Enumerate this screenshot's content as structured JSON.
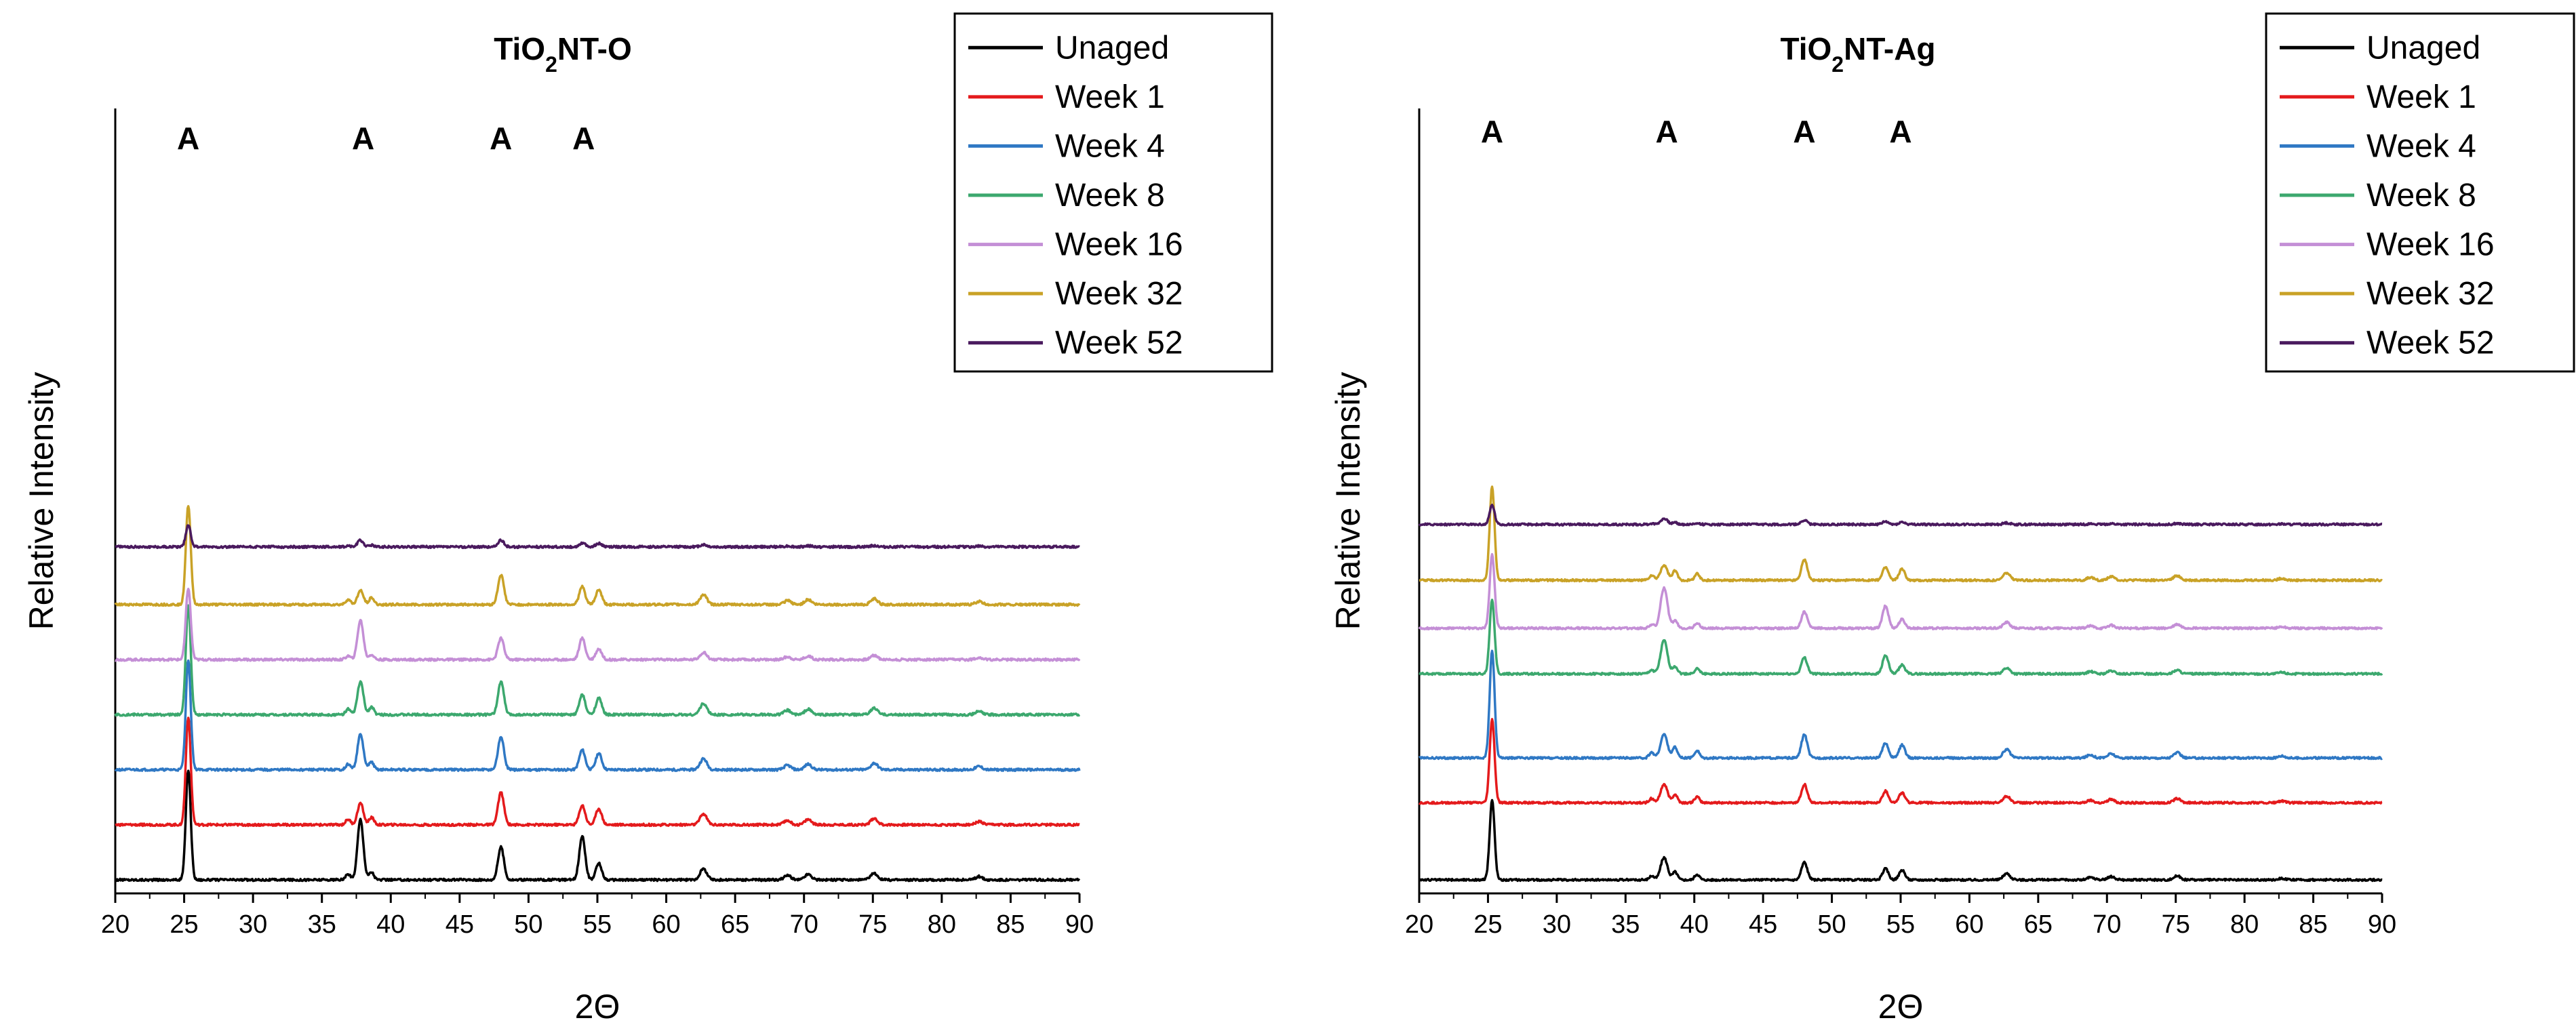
{
  "chart_data": [
    {
      "type": "line",
      "title": "TiO",
      "title_subscript": "2",
      "title_suffix": "NT-O",
      "xlabel": "2Θ",
      "ylabel": "Relative Intensity",
      "xlim": [
        20,
        90
      ],
      "xticks": [
        20,
        25,
        30,
        35,
        40,
        45,
        50,
        55,
        60,
        65,
        70,
        75,
        80,
        85,
        90
      ],
      "legend_position": "top-right",
      "annotations": [
        {
          "text": "A",
          "x": 25.3
        },
        {
          "text": "A",
          "x": 38.0
        },
        {
          "text": "A",
          "x": 48.0
        },
        {
          "text": "A",
          "x": 54.0
        }
      ],
      "peaks": [
        {
          "x": 25.3,
          "w": 0.25,
          "r": 1.0
        },
        {
          "x": 36.9,
          "w": 0.25,
          "r": 0.05
        },
        {
          "x": 37.8,
          "w": 0.3,
          "r": 0.22
        },
        {
          "x": 38.6,
          "w": 0.25,
          "r": 0.07
        },
        {
          "x": 48.0,
          "w": 0.3,
          "r": 0.3
        },
        {
          "x": 53.9,
          "w": 0.3,
          "r": 0.18
        },
        {
          "x": 55.1,
          "w": 0.3,
          "r": 0.15
        },
        {
          "x": 62.7,
          "w": 0.35,
          "r": 0.1
        },
        {
          "x": 68.8,
          "w": 0.35,
          "r": 0.04
        },
        {
          "x": 70.3,
          "w": 0.35,
          "r": 0.05
        },
        {
          "x": 75.1,
          "w": 0.35,
          "r": 0.06
        },
        {
          "x": 82.7,
          "w": 0.35,
          "r": 0.03
        }
      ],
      "series": [
        {
          "name": "Unaged",
          "color": "#000000",
          "offset": 0.0,
          "scale": 1.0,
          "end_x": 90,
          "peak_overrides": {
            "37.8": 0.55,
            "53.9": 0.4
          }
        },
        {
          "name": "Week 1",
          "color": "#e41a1c",
          "offset": 0.62,
          "scale": 0.98,
          "end_x": 90,
          "peak_overrides": {
            "37.8": 0.2,
            "48.0": 0.2
          }
        },
        {
          "name": "Week 4",
          "color": "#2f78c4",
          "offset": 1.24,
          "scale": 1.0,
          "end_x": 90,
          "peak_overrides": {
            "37.8": 0.32
          }
        },
        {
          "name": "Week 8",
          "color": "#3ca86e",
          "offset": 1.86,
          "scale": 1.0,
          "end_x": 90,
          "peak_overrides": {
            "37.8": 0.3
          }
        },
        {
          "name": "Week 16",
          "color": "#c48fd6",
          "offset": 2.48,
          "scale": 0.65,
          "end_x": 90,
          "peak_overrides": {
            "37.8": 0.55,
            "53.9": 0.3
          }
        },
        {
          "name": "Week 32",
          "color": "#c9a227",
          "offset": 3.1,
          "scale": 0.9,
          "end_x": 90,
          "peak_overrides": {
            "37.8": 0.14
          }
        },
        {
          "name": "Week 52",
          "color": "#4a1a5e",
          "offset": 3.75,
          "scale": 0.2,
          "end_x": 90,
          "peak_overrides": {
            "37.8": 0.3
          }
        }
      ]
    },
    {
      "type": "line",
      "title": "TiO",
      "title_subscript": "2",
      "title_suffix": "NT-Ag",
      "xlabel": "2Θ",
      "ylabel": "Relative Intensity",
      "xlim": [
        20,
        90
      ],
      "xticks": [
        20,
        25,
        30,
        35,
        40,
        45,
        50,
        55,
        60,
        65,
        70,
        75,
        80,
        85,
        90
      ],
      "legend_position": "top-right",
      "annotations": [
        {
          "text": "A",
          "x": 25.3
        },
        {
          "text": "A",
          "x": 38.0
        },
        {
          "text": "A",
          "x": 48.0
        },
        {
          "text": "A",
          "x": 55.0
        }
      ],
      "peaks": [
        {
          "x": 25.3,
          "w": 0.25,
          "r": 1.0
        },
        {
          "x": 36.9,
          "w": 0.25,
          "r": 0.05
        },
        {
          "x": 37.8,
          "w": 0.35,
          "r": 0.25
        },
        {
          "x": 38.6,
          "w": 0.25,
          "r": 0.1
        },
        {
          "x": 40.2,
          "w": 0.25,
          "r": 0.07
        },
        {
          "x": 48.0,
          "w": 0.3,
          "r": 0.22
        },
        {
          "x": 53.9,
          "w": 0.3,
          "r": 0.14
        },
        {
          "x": 55.1,
          "w": 0.3,
          "r": 0.12
        },
        {
          "x": 62.7,
          "w": 0.35,
          "r": 0.08
        },
        {
          "x": 68.8,
          "w": 0.35,
          "r": 0.03
        },
        {
          "x": 70.3,
          "w": 0.35,
          "r": 0.04
        },
        {
          "x": 75.1,
          "w": 0.35,
          "r": 0.05
        },
        {
          "x": 82.7,
          "w": 0.35,
          "r": 0.02
        }
      ],
      "series": [
        {
          "name": "Unaged",
          "color": "#000000",
          "offset": 0.0,
          "scale": 0.82,
          "end_x": 90,
          "peak_overrides": {
            "37.8": 0.28
          }
        },
        {
          "name": "Week 1",
          "color": "#e41a1c",
          "offset": 0.98,
          "scale": 0.86,
          "end_x": 90,
          "peak_overrides": {
            "37.8": 0.22
          }
        },
        {
          "name": "Week 4",
          "color": "#2f78c4",
          "offset": 1.55,
          "scale": 1.1,
          "end_x": 90,
          "peak_overrides": {
            "37.8": 0.22
          }
        },
        {
          "name": "Week 8",
          "color": "#3ca86e",
          "offset": 2.62,
          "scale": 0.76,
          "end_x": 90,
          "peak_overrides": {
            "37.8": 0.45,
            "53.9": 0.25
          }
        },
        {
          "name": "Week 16",
          "color": "#c48fd6",
          "offset": 3.2,
          "scale": 0.76,
          "end_x": 90,
          "peak_overrides": {
            "37.8": 0.55,
            "53.9": 0.3
          }
        },
        {
          "name": "Week 32",
          "color": "#c9a227",
          "offset": 3.81,
          "scale": 0.96,
          "end_x": 90,
          "peak_overrides": {
            "37.8": 0.16
          }
        },
        {
          "name": "Week 52",
          "color": "#4a1a5e",
          "offset": 4.52,
          "scale": 0.2,
          "end_x": 90,
          "peak_overrides": {
            "37.8": 0.3
          }
        }
      ]
    }
  ]
}
